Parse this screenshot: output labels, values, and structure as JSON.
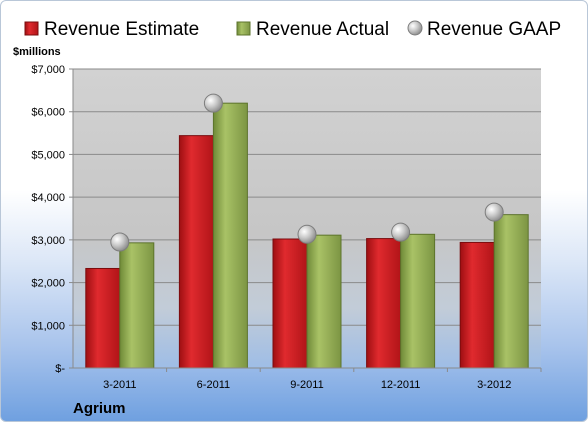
{
  "chart_data": {
    "type": "bar",
    "title": "",
    "ylabel": "$millions",
    "company": "Agrium",
    "categories": [
      "3-2011",
      "6-2011",
      "9-2011",
      "12-2011",
      "3-2012"
    ],
    "series": [
      {
        "name": "Revenue Estimate",
        "kind": "bar",
        "color": "#c8171c",
        "values": [
          2330,
          5440,
          3020,
          3030,
          2940
        ]
      },
      {
        "name": "Revenue Actual",
        "kind": "bar",
        "color": "#8fa952",
        "values": [
          2930,
          6200,
          3110,
          3130,
          3590
        ]
      },
      {
        "name": "Revenue GAAP",
        "kind": "marker",
        "color": "#b8b8b8",
        "values": [
          2950,
          6200,
          3130,
          3180,
          3650
        ]
      }
    ],
    "ylim": [
      0,
      7000
    ],
    "y_ticks": [
      0,
      1000,
      2000,
      3000,
      4000,
      5000,
      6000,
      7000
    ],
    "y_tick_labels": [
      "$-",
      "$1,000",
      "$2,000",
      "$3,000",
      "$4,000",
      "$5,000",
      "$6,000",
      "$7,000"
    ],
    "grid": true,
    "legend_position": "top"
  }
}
